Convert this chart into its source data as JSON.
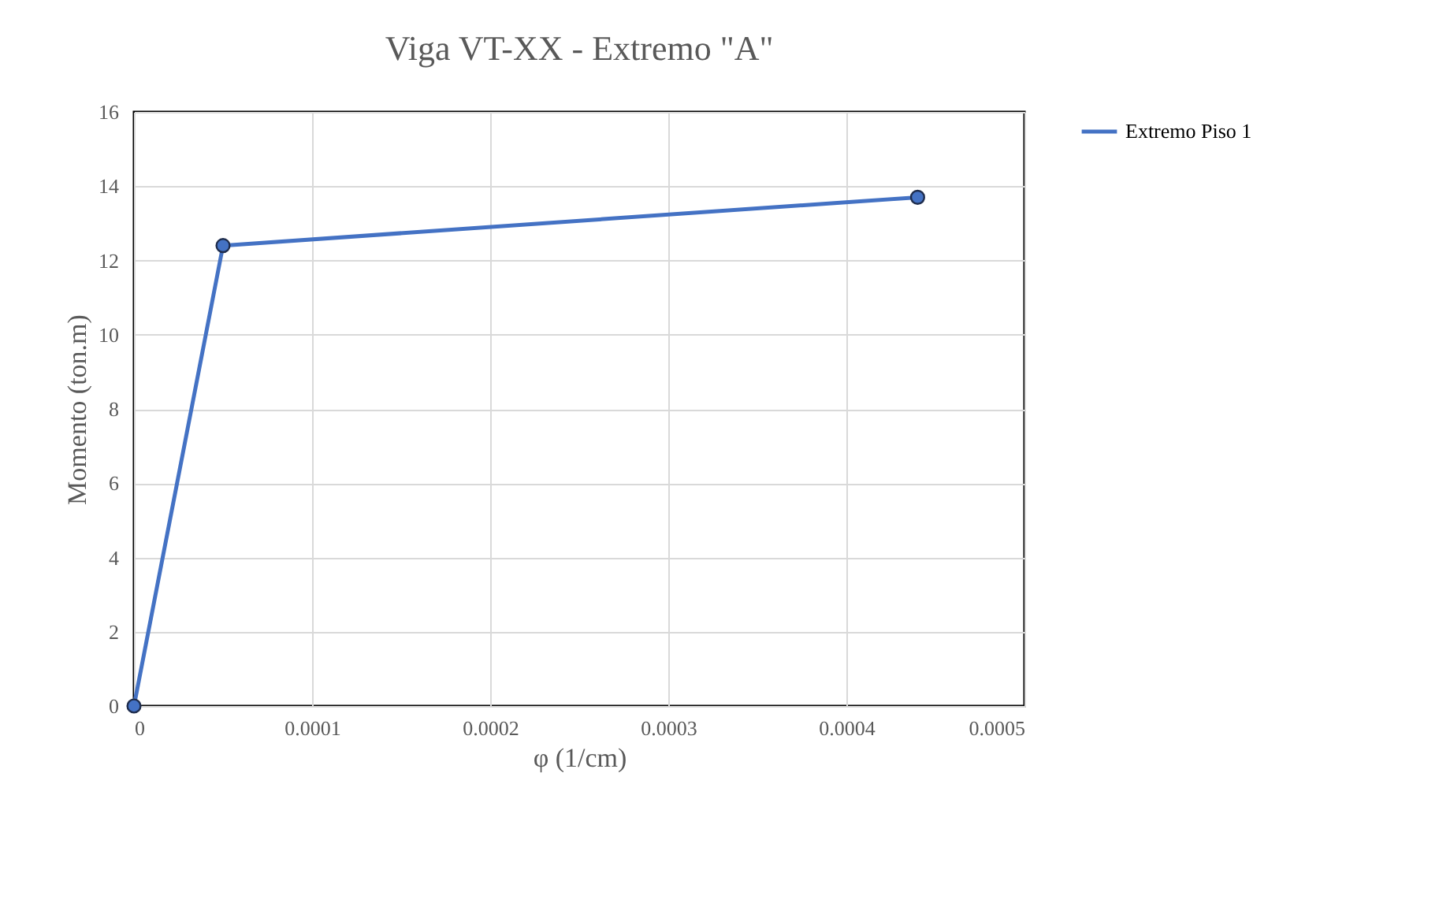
{
  "chart_data": {
    "type": "line",
    "title": "Viga VT-XX - Extremo \"A\"",
    "xlabel": "φ (1/cm)",
    "ylabel": "Momento (ton.m)",
    "x": [
      0,
      5e-05,
      0.00044
    ],
    "series": [
      {
        "name": "Extremo Piso 1",
        "color": "#4472c4",
        "values": [
          0,
          12.4,
          13.7
        ]
      }
    ],
    "xlim": [
      0,
      0.0005
    ],
    "xticks": [
      0,
      0.0001,
      0.0002,
      0.0003,
      0.0004,
      0.0005
    ],
    "ylim": [
      0,
      16
    ],
    "yticks": [
      0,
      2,
      4,
      6,
      8,
      10,
      12,
      14,
      16
    ],
    "grid": true,
    "legend": "right",
    "marker": "circle",
    "line_style": "solid"
  }
}
